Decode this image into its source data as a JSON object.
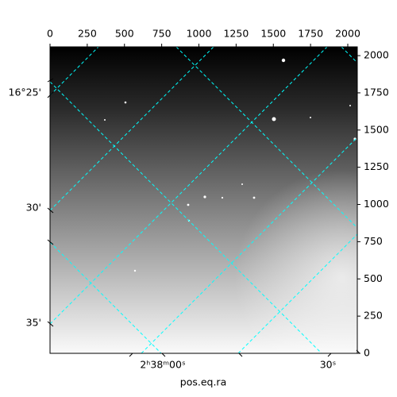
{
  "chart_data": {
    "type": "image",
    "xlabel": "pos.eq.ra",
    "xlim": [
      0,
      2064
    ],
    "xticks": [
      0,
      250,
      500,
      750,
      1000,
      1250,
      1500,
      1750,
      2000
    ],
    "ylim": [
      0,
      2059
    ],
    "yticks": [
      0,
      250,
      500,
      750,
      1000,
      1250,
      1500,
      1750,
      2000
    ],
    "dec_labels": [
      "16°25'",
      "30'",
      "35'"
    ],
    "ra_labels": [
      "2ʰ38ᵐ00ˢ",
      "30ˢ"
    ],
    "grid_color": "#00ffff"
  }
}
